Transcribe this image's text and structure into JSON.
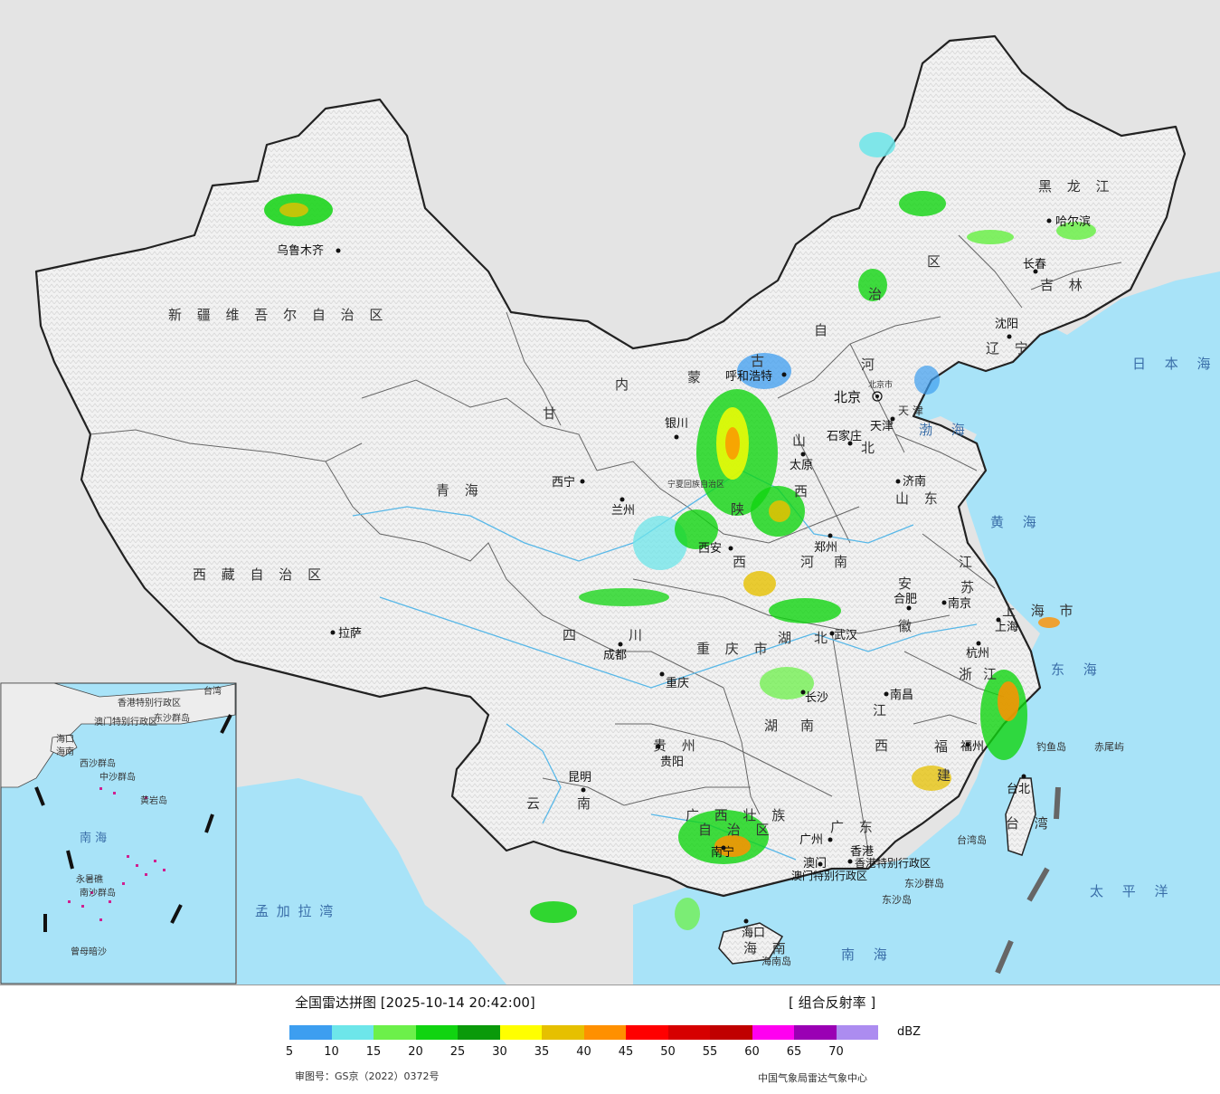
{
  "map": {
    "provinces": [
      {
        "name": "新 疆 维 吾 尔 自 治 区"
      },
      {
        "name": "西 藏 自 治 区"
      },
      {
        "name": "青 海"
      },
      {
        "name": "甘"
      },
      {
        "name": "内"
      },
      {
        "name": "蒙"
      },
      {
        "name": "古"
      },
      {
        "name": "自"
      },
      {
        "name": "治"
      },
      {
        "name": "区"
      },
      {
        "name": "黑 龙 江"
      },
      {
        "name": "吉 林"
      },
      {
        "name": "辽 宁"
      },
      {
        "name": "河"
      },
      {
        "name": "北"
      },
      {
        "name": "山"
      },
      {
        "name": "西"
      },
      {
        "name": "陕"
      },
      {
        "name": "西"
      },
      {
        "name": "宁夏回族自治区"
      },
      {
        "name": "四"
      },
      {
        "name": "川"
      },
      {
        "name": "重 庆 市"
      },
      {
        "name": "湖"
      },
      {
        "name": "北"
      },
      {
        "name": "河"
      },
      {
        "name": "南"
      },
      {
        "name": "山 东"
      },
      {
        "name": "安"
      },
      {
        "name": "徽"
      },
      {
        "name": "江"
      },
      {
        "name": "苏"
      },
      {
        "name": "浙"
      },
      {
        "name": "江"
      },
      {
        "name": "江"
      },
      {
        "name": "西"
      },
      {
        "name": "湖"
      },
      {
        "name": "南"
      },
      {
        "name": "福"
      },
      {
        "name": "建"
      },
      {
        "name": "贵 州"
      },
      {
        "name": "云"
      },
      {
        "name": "南"
      },
      {
        "name": "广 西 壮 族"
      },
      {
        "name": "自 治 区"
      },
      {
        "name": "广 东"
      },
      {
        "name": "海 南"
      },
      {
        "name": "台 湾"
      },
      {
        "name": "上 海 市"
      },
      {
        "name": "天 津"
      },
      {
        "name": "北京市"
      }
    ],
    "cities": [
      {
        "name": "乌鲁木齐"
      },
      {
        "name": "拉萨"
      },
      {
        "name": "西宁"
      },
      {
        "name": "兰州"
      },
      {
        "name": "银川"
      },
      {
        "name": "呼和浩特"
      },
      {
        "name": "北京"
      },
      {
        "name": "天津"
      },
      {
        "name": "石家庄"
      },
      {
        "name": "太原"
      },
      {
        "name": "济南"
      },
      {
        "name": "郑州"
      },
      {
        "name": "西安"
      },
      {
        "name": "成都"
      },
      {
        "name": "重庆"
      },
      {
        "name": "武汉"
      },
      {
        "name": "合肥"
      },
      {
        "name": "南京"
      },
      {
        "name": "上海"
      },
      {
        "name": "杭州"
      },
      {
        "name": "南昌"
      },
      {
        "name": "长沙"
      },
      {
        "name": "贵阳"
      },
      {
        "name": "昆明"
      },
      {
        "name": "南宁"
      },
      {
        "name": "广州"
      },
      {
        "name": "福州"
      },
      {
        "name": "台北"
      },
      {
        "name": "海口"
      },
      {
        "name": "沈阳"
      },
      {
        "name": "长春"
      },
      {
        "name": "哈尔滨"
      },
      {
        "name": "澳门"
      },
      {
        "name": "香港"
      }
    ],
    "seas": [
      {
        "name": "日 本 海"
      },
      {
        "name": "渤 海"
      },
      {
        "name": "黄 海"
      },
      {
        "name": "东 海"
      },
      {
        "name": "南 海"
      },
      {
        "name": "太 平 洋"
      },
      {
        "name": "孟 加 拉 湾"
      },
      {
        "name": "台湾岛"
      },
      {
        "name": "海南岛"
      },
      {
        "name": "钓鱼岛"
      },
      {
        "name": "赤尾屿"
      },
      {
        "name": "东沙群岛"
      },
      {
        "name": "东沙岛"
      },
      {
        "name": "香港特别行政区"
      },
      {
        "name": "澳门特别行政区"
      }
    ],
    "inset": [
      {
        "name": "南 海"
      },
      {
        "name": "海口"
      },
      {
        "name": "海南"
      },
      {
        "name": "中沙群岛"
      },
      {
        "name": "西沙群岛"
      },
      {
        "name": "南沙群岛"
      },
      {
        "name": "香港特别行政区"
      },
      {
        "name": "澳门特别行政区"
      },
      {
        "name": "东沙群岛"
      },
      {
        "name": "黄岩岛"
      },
      {
        "name": "永暑礁"
      },
      {
        "name": "曾母暗沙"
      },
      {
        "name": "台湾"
      }
    ]
  },
  "footer": {
    "title": "全国雷达拼图 [2025-10-14 20:42:00]",
    "product": "[ 组合反射率 ]",
    "unit": "dBZ",
    "approval": "审图号：GS京（2022）0372号",
    "agency": "中国气象局雷达气象中心",
    "colorbar": {
      "colors": [
        "#3d9ef0",
        "#6de6ea",
        "#6cf04a",
        "#10d410",
        "#0a9a0a",
        "#ffff00",
        "#e6c000",
        "#ff9000",
        "#ff0000",
        "#d60000",
        "#c00000",
        "#ff00f0",
        "#9a00b4",
        "#ac8cf0"
      ],
      "ticks": [
        "5",
        "10",
        "15",
        "20",
        "25",
        "30",
        "35",
        "40",
        "45",
        "50",
        "55",
        "60",
        "65",
        "70"
      ]
    }
  }
}
